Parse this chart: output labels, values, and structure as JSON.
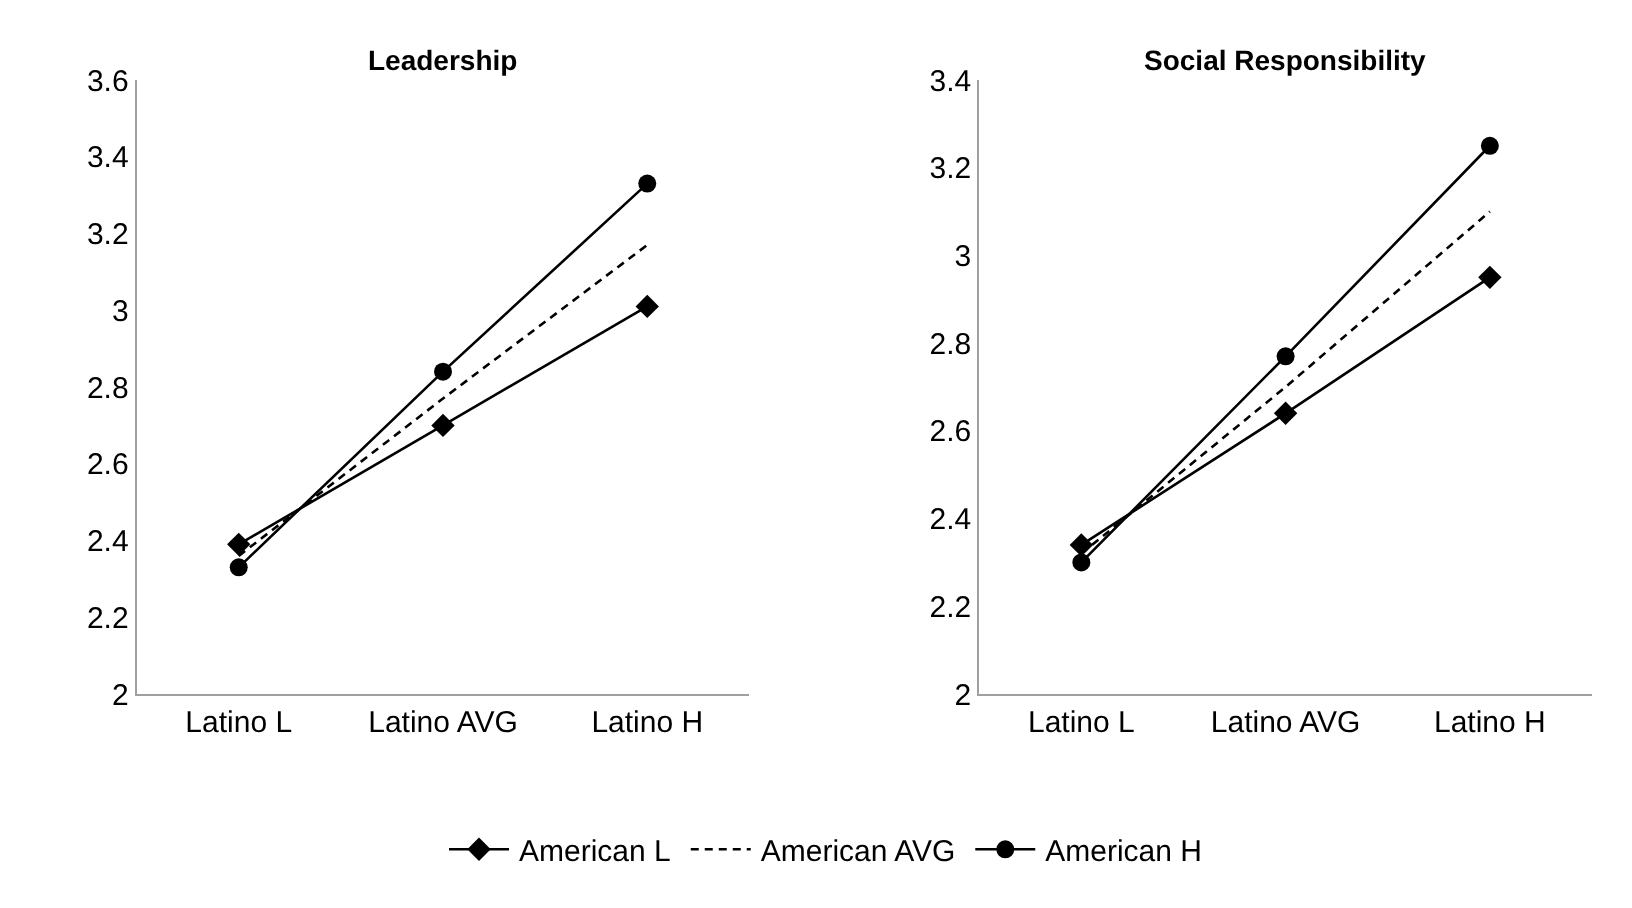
{
  "chart_data": [
    {
      "type": "line",
      "title": "Leadership",
      "categories": [
        "Latino L",
        "Latino AVG",
        "Latino H"
      ],
      "ylim": [
        2,
        3.6
      ],
      "yticks": [
        2,
        2.2,
        2.4,
        2.6,
        2.8,
        3,
        3.2,
        3.4,
        3.6
      ],
      "legend": "bottom",
      "series": [
        {
          "name": "American L",
          "color": "#000000",
          "marker": "diamond",
          "line_style": "solid",
          "values": [
            2.39,
            2.7,
            3.01
          ]
        },
        {
          "name": "American AVG",
          "color": "#000000",
          "marker": "none",
          "line_style": "dashed",
          "values": [
            2.36,
            2.77,
            3.17
          ]
        },
        {
          "name": "American H",
          "color": "#000000",
          "marker": "circle",
          "line_style": "solid",
          "values": [
            2.33,
            2.84,
            3.33
          ]
        }
      ]
    },
    {
      "type": "line",
      "title": "Social Responsibility",
      "categories": [
        "Latino L",
        "Latino AVG",
        "Latino H"
      ],
      "ylim": [
        2,
        3.4
      ],
      "yticks": [
        2,
        2.2,
        2.4,
        2.6,
        2.8,
        3,
        3.2,
        3.4
      ],
      "legend": false,
      "series": [
        {
          "color": "#000000",
          "marker": "diamond",
          "line_style": "solid",
          "values": [
            2.34,
            2.64,
            2.95
          ]
        },
        {
          "color": "#000000",
          "marker": "none",
          "line_style": "dashed",
          "values": [
            2.32,
            2.7,
            3.1
          ]
        },
        {
          "color": "#000000",
          "marker": "circle",
          "line_style": "solid",
          "values": [
            2.3,
            2.77,
            3.25
          ]
        }
      ]
    }
  ]
}
